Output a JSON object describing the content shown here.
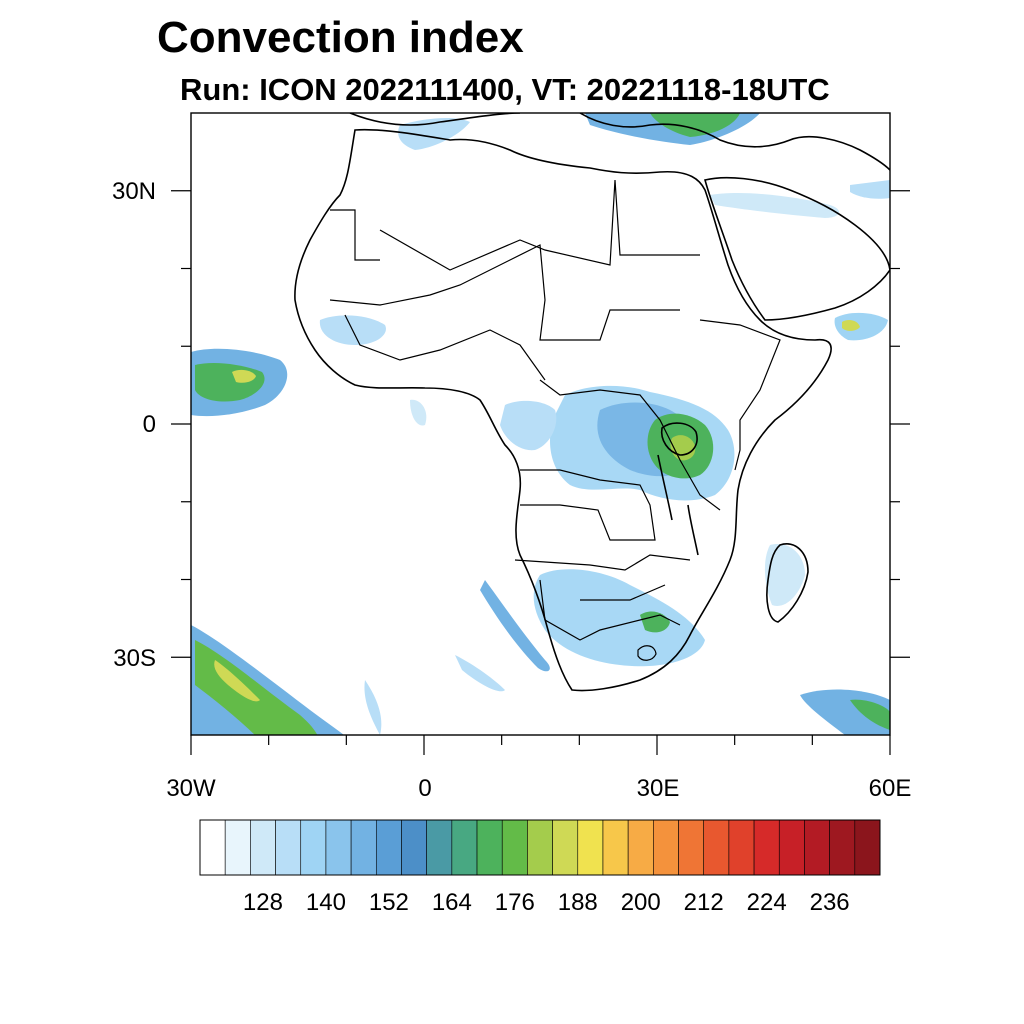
{
  "title": "Convection index",
  "subtitle": "Run: ICON 2022111400,  VT: 20221118-18UTC",
  "map": {
    "projection": "lat-lon",
    "lon_range": [
      -30,
      60
    ],
    "lat_range": [
      -40,
      40
    ],
    "lat_labels": [
      "30N",
      "0",
      "30S"
    ],
    "lon_labels": [
      "30W",
      "0",
      "30E",
      "60E"
    ],
    "features": [
      "coastlines",
      "country borders",
      "lakes"
    ]
  },
  "colorbar": {
    "labels": [
      "128",
      "140",
      "152",
      "164",
      "176",
      "188",
      "200",
      "212",
      "224",
      "236"
    ],
    "colors": [
      "#ffffff",
      "#e8f5fc",
      "#cfe9f8",
      "#b8def7",
      "#9fd4f4",
      "#8ac4ec",
      "#72b2e3",
      "#5a9ed6",
      "#4c8fc8",
      "#4a9aa5",
      "#48a882",
      "#4db25c",
      "#63bb48",
      "#a4cc4c",
      "#cfd955",
      "#f0e24f",
      "#f7c74a",
      "#f7ab45",
      "#f4923c",
      "#ef7535",
      "#e8582f",
      "#e0412b",
      "#d62a29",
      "#c72027",
      "#b31b24",
      "#9e1820",
      "#8b151c"
    ]
  }
}
